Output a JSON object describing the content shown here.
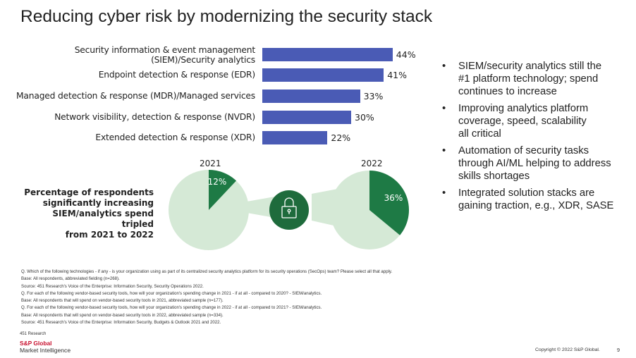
{
  "slide": {
    "title": "Reducing cyber risk by modernizing the security stack",
    "page_number": "9",
    "copyright": "Copyright © 2022 S&P Global."
  },
  "chart_data": [
    {
      "type": "bar",
      "orientation": "horizontal",
      "categories": [
        [
          "Security information & event management",
          "(SIEM)/Security analytics"
        ],
        [
          "Endpoint detection & response (EDR)"
        ],
        [
          "Managed detection & response (MDR)/Managed services"
        ],
        [
          "Network visibility, detection & response (NVDR)"
        ],
        [
          "Extended detection & response (XDR)"
        ]
      ],
      "values": [
        44,
        41,
        33,
        30,
        22
      ],
      "value_labels": [
        "44%",
        "41%",
        "33%",
        "30%",
        "22%"
      ],
      "unit": "%",
      "color": "#4a5bb5"
    },
    {
      "type": "pie",
      "year": "2021",
      "value": 12,
      "label": "12%",
      "highlight_color": "#1e7a45",
      "rest_color": "#d5e9d6"
    },
    {
      "type": "pie",
      "year": "2022",
      "value": 36,
      "label": "36%",
      "highlight_color": "#1e7a45",
      "rest_color": "#d5e9d6"
    }
  ],
  "pie_caption": [
    "Percentage of respondents",
    "significantly increasing",
    "SIEM/analytics spend tripled",
    "from 2021 to 2022"
  ],
  "lock_icon": {
    "name": "lock-icon",
    "color": "#1e6b3c"
  },
  "bullets": [
    [
      "SIEM/security analytics still the",
      "#1 platform technology; spend",
      "continues to increase"
    ],
    [
      "Improving analytics platform",
      "coverage, speed, scalability",
      "all critical"
    ],
    [
      "Automation of security tasks",
      "through AI/ML helping to address",
      "skills shortages"
    ],
    [
      "Integrated solution stacks are",
      "gaining traction, e.g., XDR, SASE"
    ]
  ],
  "bullet_glyph": "•",
  "notes": [
    "Q. Which of the following technologies - if any - is your organization using as part of its centralized security analytics platform for its security operations (SecOps) team? Please select all that apply.",
    "Base: All respondents, abbreviated fielding (n=268).",
    "Source: 451 Research's Voice of the Enterprise: Information Security, Security Operations 2022.",
    "Q. For each of the following vendor-based security tools, how will your organization's spending change in 2021 - if at all - compared to 2020? - SIEM/analytics.",
    "Base: All respondents that will spend on vendor-based security tools in 2021, abbreviated sample (n=177).",
    "Q. For each of the following vendor-based security tools, how will your organization's spending change in 2022 - if at all - compared to 2021? - SIEM/analytics.",
    "Base: All respondents that will spend on vendor-based security tools in 2022, abbreviated sample (n=334).",
    "Source: 451 Research's Voice of the Enterprise: Information Security, Budgets & Outlook 2021 and 2022."
  ],
  "footer": {
    "source": "451 Research",
    "logo_line1": "S&P Global",
    "logo_line2": "Market Intelligence"
  }
}
